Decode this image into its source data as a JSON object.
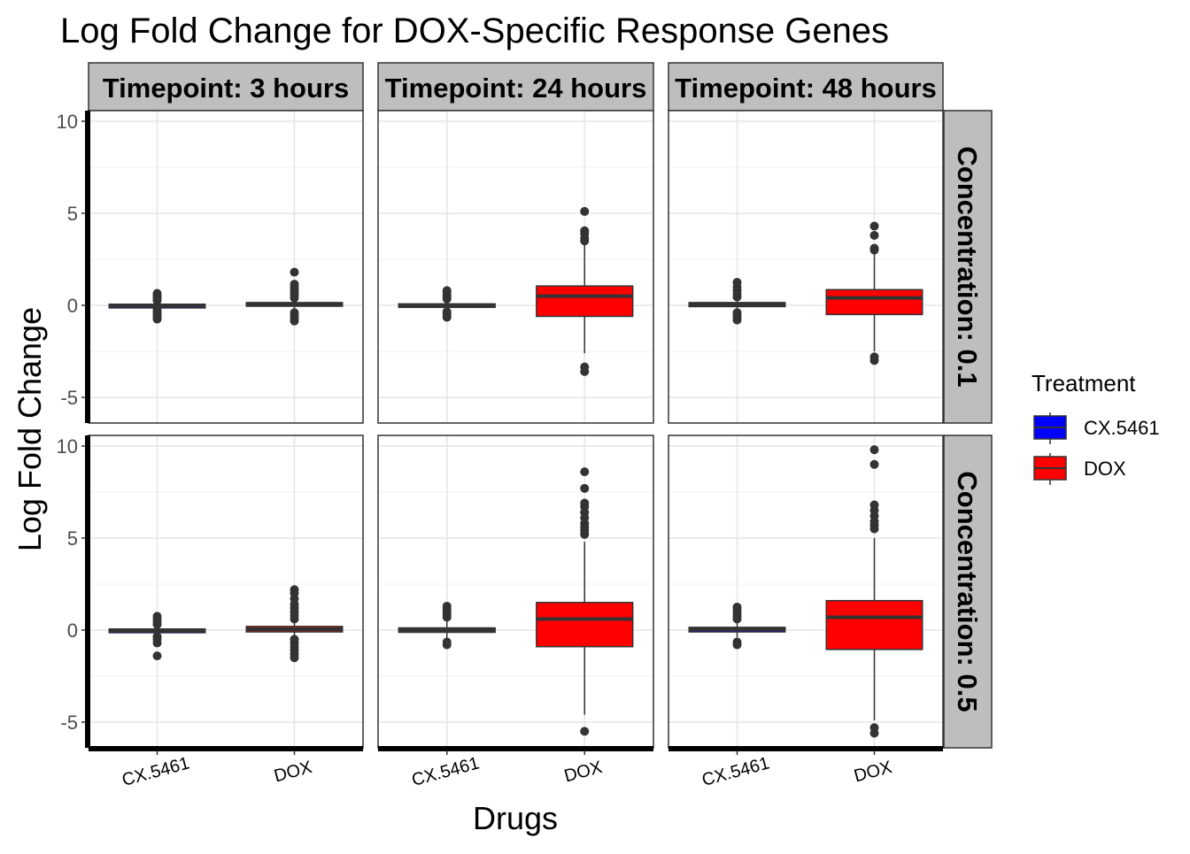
{
  "chart_data": {
    "type": "boxplot",
    "title": "Log Fold Change for DOX-Specific Response Genes",
    "xlabel": "Drugs",
    "ylabel": "Log Fold Change",
    "ylim": [
      -6,
      10.5
    ],
    "yticks": [
      -5,
      0,
      5,
      10
    ],
    "categories": [
      "CX.5461",
      "DOX"
    ],
    "facet_cols": [
      "Timepoint: 3 hours",
      "Timepoint: 24 hours",
      "Timepoint: 48 hours"
    ],
    "facet_rows": [
      "Concentration: 0.1",
      "Concentration: 0.5"
    ],
    "legend": {
      "title": "Treatment",
      "position": "right",
      "items": [
        {
          "label": "CX.5461",
          "color": "#0000ff"
        },
        {
          "label": "DOX",
          "color": "#ff0000"
        }
      ]
    },
    "grid": true,
    "panels": [
      {
        "row": 0,
        "col": 0,
        "boxes": [
          {
            "category": "CX.5461",
            "q1": -0.05,
            "median": 0.0,
            "q3": 0.05,
            "whisker_low": -0.12,
            "whisker_high": 0.12,
            "outliers": [
              -0.75,
              -0.65,
              -0.55,
              -0.45,
              -0.35,
              -0.25,
              0.25,
              0.35,
              0.45,
              0.55,
              0.65
            ]
          },
          {
            "category": "DOX",
            "q1": -0.05,
            "median": 0.05,
            "q3": 0.15,
            "whisker_low": -0.2,
            "whisker_high": 0.3,
            "outliers": [
              -0.85,
              -0.7,
              -0.55,
              -0.4,
              0.4,
              0.55,
              0.7,
              0.85,
              1.0,
              1.15,
              1.8
            ]
          }
        ]
      },
      {
        "row": 0,
        "col": 1,
        "boxes": [
          {
            "category": "CX.5461",
            "q1": -0.08,
            "median": 0.0,
            "q3": 0.08,
            "whisker_low": -0.2,
            "whisker_high": 0.2,
            "outliers": [
              -0.65,
              -0.55,
              -0.45,
              -0.35,
              0.35,
              0.45,
              0.55,
              0.7,
              0.8
            ]
          },
          {
            "category": "DOX",
            "q1": -0.6,
            "median": 0.5,
            "q3": 1.05,
            "whisker_low": -2.6,
            "whisker_high": 3.3,
            "outliers": [
              -3.6,
              -3.35,
              3.5,
              3.65,
              3.9,
              4.05,
              5.1
            ]
          }
        ]
      },
      {
        "row": 0,
        "col": 2,
        "boxes": [
          {
            "category": "CX.5461",
            "q1": -0.07,
            "median": 0.05,
            "q3": 0.15,
            "whisker_low": -0.25,
            "whisker_high": 0.3,
            "outliers": [
              -0.8,
              -0.65,
              -0.5,
              -0.4,
              0.45,
              0.6,
              0.8,
              1.0,
              1.25
            ]
          },
          {
            "category": "DOX",
            "q1": -0.5,
            "median": 0.4,
            "q3": 0.85,
            "whisker_low": -2.5,
            "whisker_high": 2.8,
            "outliers": [
              -3.0,
              -2.8,
              3.0,
              3.1,
              3.8,
              4.3
            ]
          }
        ]
      },
      {
        "row": 1,
        "col": 0,
        "boxes": [
          {
            "category": "CX.5461",
            "q1": -0.05,
            "median": 0.0,
            "q3": 0.05,
            "whisker_low": -0.15,
            "whisker_high": 0.15,
            "outliers": [
              -1.4,
              -0.7,
              -0.5,
              -0.35,
              0.3,
              0.45,
              0.6,
              0.75
            ]
          },
          {
            "category": "DOX",
            "q1": -0.1,
            "median": 0.05,
            "q3": 0.2,
            "whisker_low": -0.3,
            "whisker_high": 0.4,
            "outliers": [
              -1.5,
              -1.3,
              -1.1,
              -0.9,
              -0.7,
              -0.5,
              0.6,
              0.8,
              1.0,
              1.2,
              1.4,
              1.7,
              2.0,
              2.2
            ]
          }
        ]
      },
      {
        "row": 1,
        "col": 1,
        "boxes": [
          {
            "category": "CX.5461",
            "q1": -0.12,
            "median": 0.0,
            "q3": 0.12,
            "whisker_low": -0.45,
            "whisker_high": 0.5,
            "outliers": [
              -0.8,
              -0.65,
              0.7,
              0.85,
              1.0,
              1.15,
              1.3
            ]
          },
          {
            "category": "DOX",
            "q1": -0.9,
            "median": 0.6,
            "q3": 1.5,
            "whisker_low": -4.6,
            "whisker_high": 4.8,
            "outliers": [
              -5.5,
              5.2,
              5.4,
              5.6,
              5.8,
              6.1,
              6.4,
              6.7,
              6.9,
              7.7,
              8.6
            ]
          }
        ]
      },
      {
        "row": 1,
        "col": 2,
        "boxes": [
          {
            "category": "CX.5461",
            "q1": -0.1,
            "median": 0.05,
            "q3": 0.15,
            "whisker_low": -0.4,
            "whisker_high": 0.45,
            "outliers": [
              -0.8,
              -0.65,
              0.6,
              0.75,
              0.9,
              1.1,
              1.25
            ]
          },
          {
            "category": "DOX",
            "q1": -1.05,
            "median": 0.7,
            "q3": 1.6,
            "whisker_low": -4.9,
            "whisker_high": 5.0,
            "outliers": [
              -5.6,
              -5.3,
              5.5,
              5.7,
              5.9,
              6.2,
              6.5,
              6.8,
              9.0,
              9.8
            ]
          }
        ]
      }
    ]
  }
}
